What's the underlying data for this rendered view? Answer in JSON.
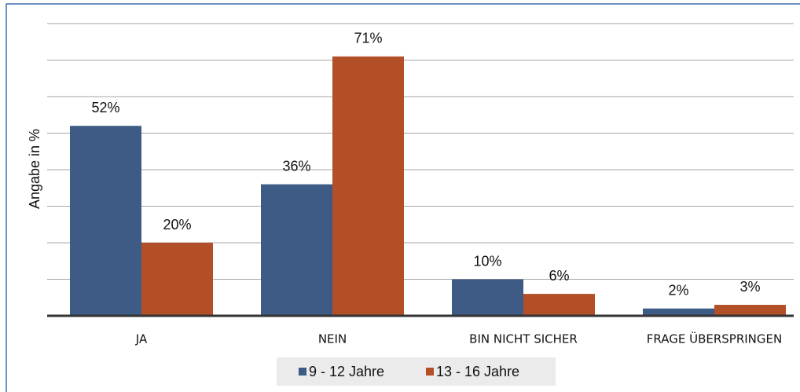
{
  "chart_data": {
    "type": "bar",
    "y_axis_label": "Angabe in %",
    "categories": [
      "JA",
      "NEIN",
      "BIN NICHT SICHER",
      "FRAGE ÜBERSPRINGEN"
    ],
    "series": [
      {
        "name": "9 - 12 Jahre",
        "color": "#3e5b86",
        "values": [
          52,
          36,
          10,
          2
        ],
        "value_labels": [
          "52%",
          "36%",
          "10%",
          "2%"
        ]
      },
      {
        "name": "13 - 16 Jahre",
        "color": "#b24f27",
        "values": [
          20,
          71,
          6,
          3
        ],
        "value_labels": [
          "20%",
          "71%",
          "6%",
          "3%"
        ]
      }
    ],
    "ylim": [
      0,
      80
    ],
    "yticks": [
      0,
      10,
      20,
      30,
      40,
      50,
      60,
      70,
      80
    ],
    "grid": true,
    "legend": "bottom"
  }
}
